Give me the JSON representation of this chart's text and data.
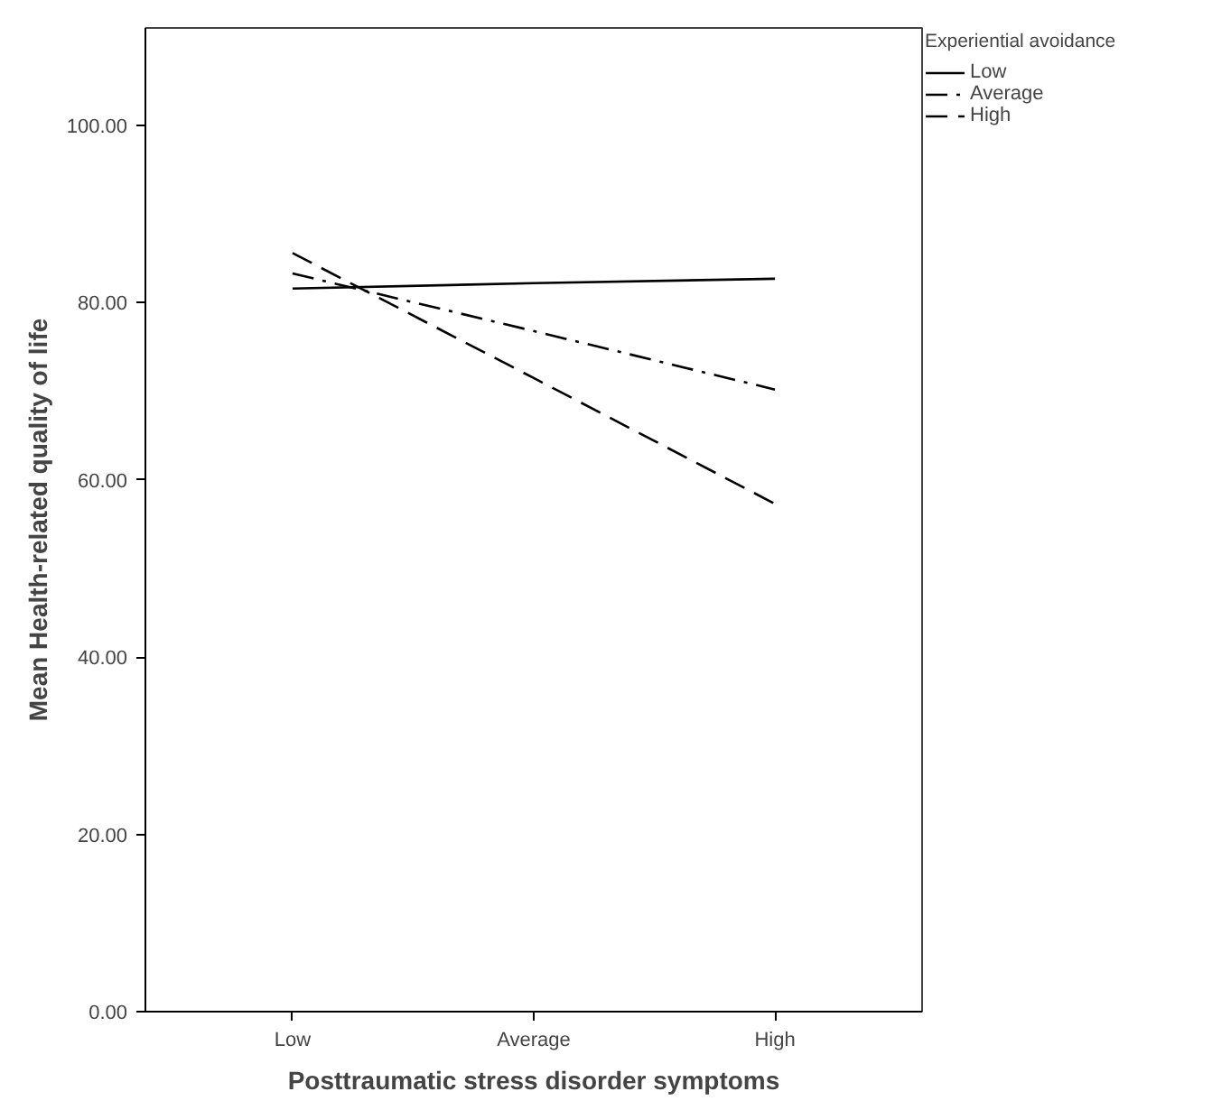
{
  "chart_data": {
    "type": "line",
    "xlabel": "Posttraumatic stress disorder symptoms",
    "ylabel": "Mean Health-related quality of life",
    "legend_title": "Experiential avoidance",
    "categories": [
      "Low",
      "Average",
      "High"
    ],
    "series": [
      {
        "name": "Low",
        "color": "#000000",
        "line_style": "solid",
        "values": [
          81.6,
          82.2,
          82.7
        ]
      },
      {
        "name": "Average",
        "color": "#000000",
        "line_style": "dashdot",
        "values": [
          83.3,
          76.8,
          70.2
        ]
      },
      {
        "name": "High",
        "color": "#000000",
        "line_style": "dashed",
        "values": [
          85.6,
          71.5,
          57.3
        ]
      }
    ],
    "ylim": [
      0,
      111
    ],
    "yticks": [
      {
        "value": 0,
        "label": "0.00"
      },
      {
        "value": 20,
        "label": "20.00"
      },
      {
        "value": 40,
        "label": "40.00"
      },
      {
        "value": 60,
        "label": "60.00"
      },
      {
        "value": 80,
        "label": "80.00"
      },
      {
        "value": 100,
        "label": "100.00"
      }
    ],
    "grid": false,
    "legend": "top right",
    "marker": "none"
  }
}
